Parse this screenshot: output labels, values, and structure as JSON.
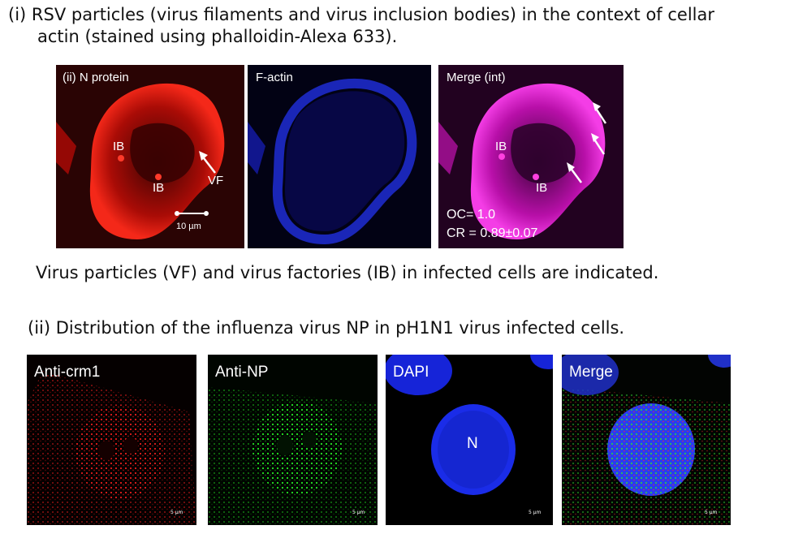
{
  "section_i": {
    "title_line1": "(i)  RSV particles (virus filaments and virus inclusion bodies) in the context of cellar",
    "title_line2": "actin (stained using phalloidin-Alexa 633).",
    "caption": "Virus particles (VF) and virus factories (IB) in infected cells are indicated.",
    "panels": [
      {
        "label": "(ii) N protein",
        "color": "#ff2a1a"
      },
      {
        "label": "F-actin",
        "color": "#1f2cff"
      },
      {
        "label": "Merge (int)",
        "color": "#ff30e8"
      }
    ],
    "annotations": {
      "ib": "IB",
      "vf": "VF",
      "scalebar": "10 µm",
      "oc": "OC= 1.0",
      "cr": "CR = 0.89±0.07"
    }
  },
  "section_ii": {
    "title": "(ii) Distribution of the influenza virus NP in pH1N1 virus infected cells.",
    "panels": [
      {
        "label": "Anti-crm1",
        "color": "#ff2020"
      },
      {
        "label": "Anti-NP",
        "color": "#22e022"
      },
      {
        "label": "DAPI",
        "color": "#1a2cff"
      },
      {
        "label": "Merge",
        "color": "#ffffff"
      }
    ],
    "nucleus_label": "N",
    "scalebar": "5 µm"
  }
}
